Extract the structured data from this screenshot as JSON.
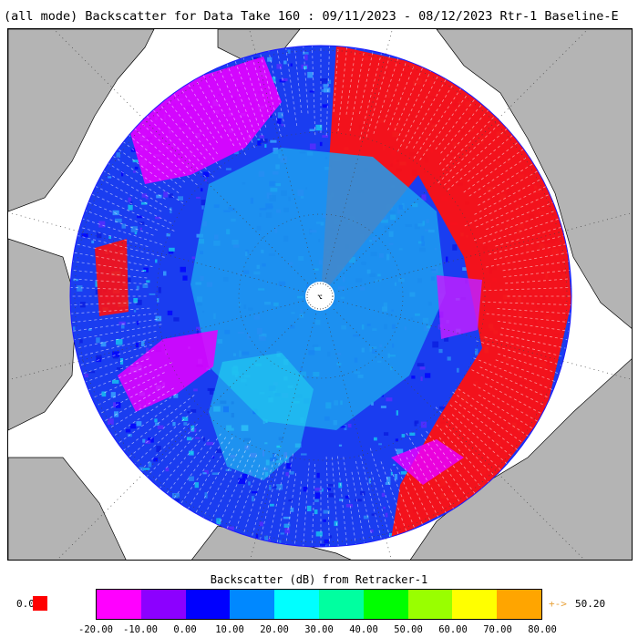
{
  "title": "(all mode) Backscatter for Data Take 160 : 09/11/2023 - 08/12/2023 Rtr-1 Baseline-E",
  "map": {
    "projection": "north-polar-stereographic",
    "pole_marker_label": "⌥",
    "colors": {
      "ocean": "#ffffff",
      "land": "#b4b4b4",
      "coastline": "#000000",
      "graticule": "#444444"
    }
  },
  "legend": {
    "title": "Backscatter (dB) from Retracker-1",
    "zero_label": "0.0",
    "zero_color": "#ff0000",
    "over_arrow": "+->",
    "over_value": "50.20",
    "ticks": [
      "-20.00",
      "-10.00",
      "0.00",
      "10.00",
      "20.00",
      "30.00",
      "40.00",
      "50.00",
      "60.00",
      "70.00",
      "80.00"
    ],
    "colors": [
      "#ff00ff",
      "#8c00ff",
      "#0000ff",
      "#0088ff",
      "#00ffff",
      "#00ffa0",
      "#00ff00",
      "#99ff00",
      "#ffff00",
      "#ffa500"
    ]
  }
}
